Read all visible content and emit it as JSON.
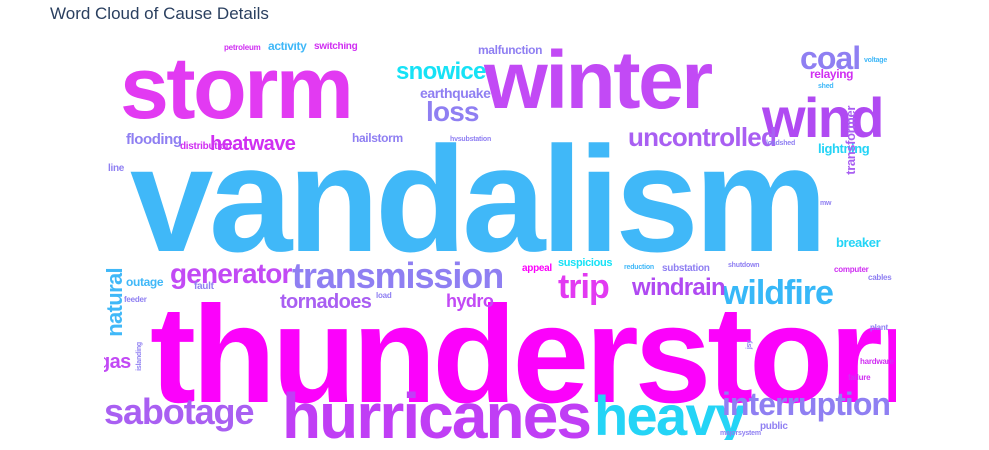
{
  "title": "Word Cloud of Cause Details",
  "chart_data": {
    "type": "wordcloud",
    "title": "Word Cloud of Cause Details",
    "words": [
      {
        "text": "vandalism",
        "color": "#40b8f8"
      },
      {
        "text": "thunderstorm",
        "color": "#fb02fb"
      },
      {
        "text": "storm",
        "color": "#e23af2"
      },
      {
        "text": "winter",
        "color": "#c24af5"
      },
      {
        "text": "wind",
        "color": "#b04af2"
      },
      {
        "text": "hurricanes",
        "color": "#c03ef5"
      },
      {
        "text": "heavy",
        "color": "#24d4f6"
      },
      {
        "text": "sabotage",
        "color": "#a95ff2"
      },
      {
        "text": "transmission",
        "color": "#8f7ff2"
      },
      {
        "text": "wildfire",
        "color": "#37b8f8"
      },
      {
        "text": "interruption",
        "color": "#8f7ff2"
      },
      {
        "text": "coal",
        "color": "#8f7ff2"
      },
      {
        "text": "trip",
        "color": "#e23af2"
      },
      {
        "text": "generator",
        "color": "#c24af5"
      },
      {
        "text": "uncontrolled",
        "color": "#a95ff2"
      },
      {
        "text": "snowice",
        "color": "#16e2f6"
      },
      {
        "text": "loss",
        "color": "#8f7ff2"
      },
      {
        "text": "windrain",
        "color": "#b04af2"
      },
      {
        "text": "heatwave",
        "color": "#d02ff2"
      },
      {
        "text": "tornadoes",
        "color": "#a95ff2"
      },
      {
        "text": "hydro",
        "color": "#c24af5"
      },
      {
        "text": "earthquake",
        "color": "#8f7ff2"
      },
      {
        "text": "malfunction",
        "color": "#8f7ff2"
      },
      {
        "text": "natural",
        "color": "#40b8f8"
      },
      {
        "text": "gas",
        "color": "#c24af5"
      },
      {
        "text": "flooding",
        "color": "#8f7ff2"
      },
      {
        "text": "breaker",
        "color": "#24d4f6"
      },
      {
        "text": "lightning",
        "color": "#24d4f6"
      },
      {
        "text": "transformer",
        "color": "#a95ff2"
      },
      {
        "text": "relaying",
        "color": "#d02ff2"
      },
      {
        "text": "outage",
        "color": "#40b8f8"
      },
      {
        "text": "hailstorm",
        "color": "#8f7ff2"
      },
      {
        "text": "activity",
        "color": "#40b8f8"
      },
      {
        "text": "switching",
        "color": "#d02ff2"
      },
      {
        "text": "suspicious",
        "color": "#16e2f6"
      },
      {
        "text": "substation",
        "color": "#8f7ff2"
      },
      {
        "text": "distribution",
        "color": "#d02ff2"
      },
      {
        "text": "fault",
        "color": "#8f7ff2"
      },
      {
        "text": "appeal",
        "color": "#fb02fb"
      },
      {
        "text": "public",
        "color": "#8f7ff2"
      },
      {
        "text": "line",
        "color": "#8f7ff2"
      },
      {
        "text": "petroleum",
        "color": "#d02ff2"
      },
      {
        "text": "hvsubstation",
        "color": "#8f7ff2"
      },
      {
        "text": "loadshed",
        "color": "#8f7ff2"
      },
      {
        "text": "shed",
        "color": "#40b8f8"
      },
      {
        "text": "voltage",
        "color": "#40b8f8"
      },
      {
        "text": "feeder",
        "color": "#8f7ff2"
      },
      {
        "text": "load",
        "color": "#8f7ff2"
      },
      {
        "text": "islanding",
        "color": "#8f7ff2"
      },
      {
        "text": "reduction",
        "color": "#40b8f8"
      },
      {
        "text": "shutdown",
        "color": "#8f7ff2"
      },
      {
        "text": "computer",
        "color": "#d02ff2"
      },
      {
        "text": "cables",
        "color": "#8f7ff2"
      },
      {
        "text": "plant",
        "color": "#8f7ff2"
      },
      {
        "text": "hardware",
        "color": "#d02ff2"
      },
      {
        "text": "failure",
        "color": "#d02ff2"
      },
      {
        "text": "majorsystem",
        "color": "#8f7ff2"
      },
      {
        "text": "mw",
        "color": "#8f7ff2"
      },
      {
        "text": "jsy",
        "color": "#8f7ff2"
      }
    ]
  }
}
